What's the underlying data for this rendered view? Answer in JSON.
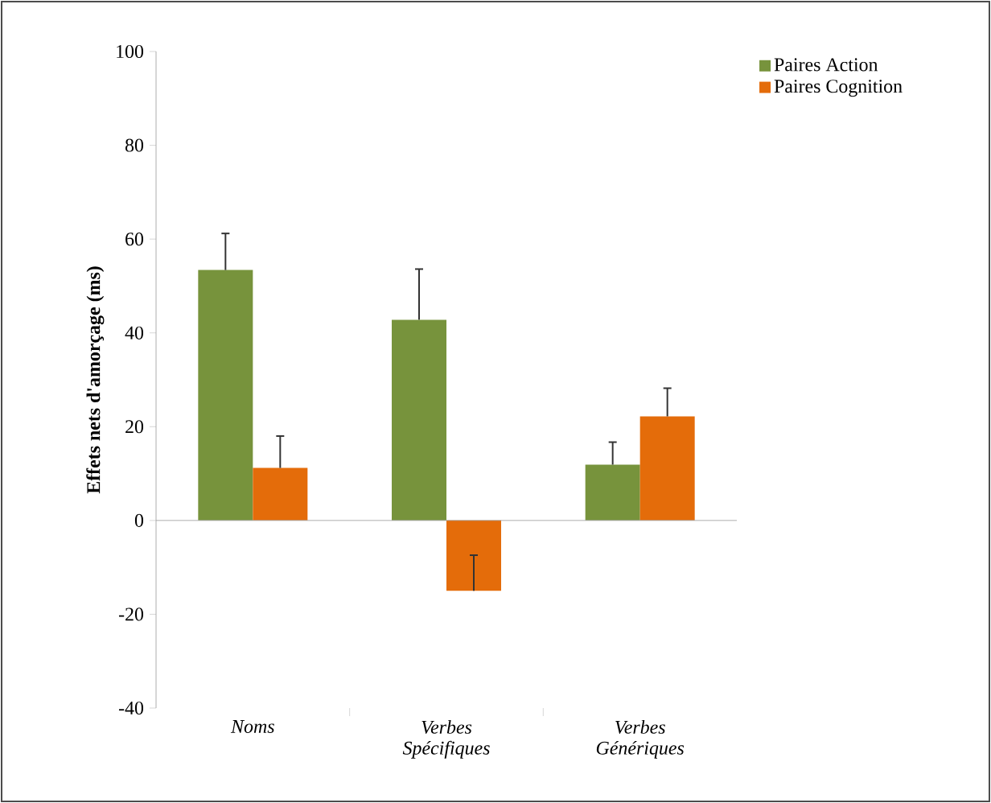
{
  "chart_data": {
    "type": "bar",
    "ylabel": "Effets nets d'amorçage (ms)",
    "categories": [
      "Noms",
      "Verbes Spécifiques",
      "Verbes Génériques"
    ],
    "series": [
      {
        "name": "Paires Action",
        "color": "#77933c",
        "values": [
          53.4,
          42.8,
          11.9
        ],
        "errors": [
          [
            53.4,
            61.2
          ],
          [
            42.8,
            53.6
          ],
          [
            11.9,
            16.7
          ]
        ]
      },
      {
        "name": "Paires Cognition",
        "color": "#e46c0a",
        "values": [
          11.2,
          -15.0,
          22.2
        ],
        "errors": [
          [
            11.2,
            18.0
          ],
          [
            -15.0,
            -7.4
          ],
          [
            22.2,
            28.2
          ]
        ]
      }
    ],
    "ylim": [
      -40,
      100
    ],
    "yticks": [
      -40,
      -20,
      0,
      20,
      40,
      60,
      80,
      100
    ],
    "legend": "top right"
  }
}
